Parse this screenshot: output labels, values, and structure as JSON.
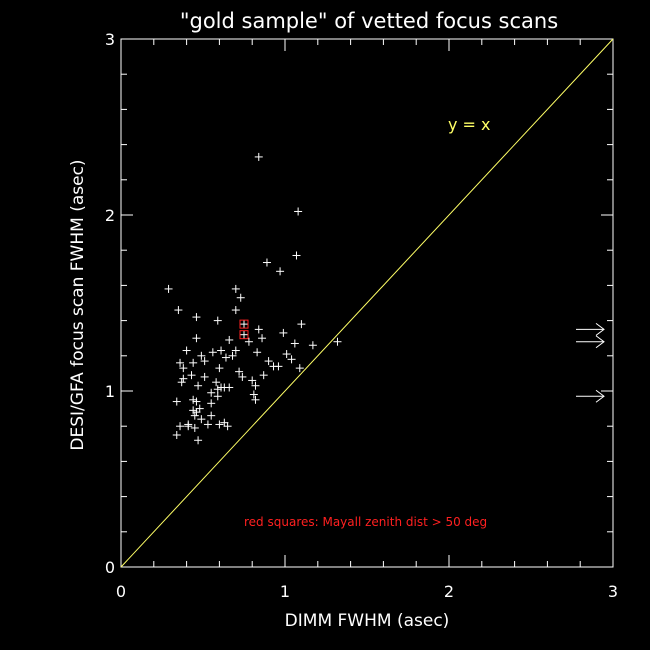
{
  "chart_data": {
    "type": "scatter",
    "title": "\"gold sample\" of vetted focus scans",
    "xlabel": "DIMM FWHM (asec)",
    "ylabel": "DESI/GFA focus scan FWHM (asec)",
    "xlim": [
      0,
      3
    ],
    "ylim": [
      0,
      3
    ],
    "x_ticks": [
      0,
      1,
      2,
      3
    ],
    "y_ticks": [
      0,
      1,
      2,
      3
    ],
    "grid": false,
    "reference_line": {
      "label": "y = x",
      "color": "#ffff66"
    },
    "annotation": {
      "text": "red squares: Mayall zenith dist > 50 deg",
      "color": "#ff2020"
    },
    "arrows_at_right_y": [
      1.35,
      1.28,
      0.97
    ],
    "series": [
      {
        "marker": "plus",
        "color": "#ffffff",
        "points": [
          [
            0.29,
            1.58
          ],
          [
            0.35,
            1.46
          ],
          [
            0.46,
            1.42
          ],
          [
            0.59,
            1.4
          ],
          [
            0.7,
            1.58
          ],
          [
            0.7,
            1.46
          ],
          [
            0.73,
            1.53
          ],
          [
            0.84,
            2.33
          ],
          [
            0.89,
            1.73
          ],
          [
            0.97,
            1.68
          ],
          [
            1.08,
            2.02
          ],
          [
            1.07,
            1.77
          ],
          [
            0.84,
            1.35
          ],
          [
            0.86,
            1.3
          ],
          [
            0.99,
            1.33
          ],
          [
            1.1,
            1.38
          ],
          [
            1.06,
            1.27
          ],
          [
            1.17,
            1.26
          ],
          [
            1.32,
            1.28
          ],
          [
            0.36,
            1.16
          ],
          [
            0.4,
            1.23
          ],
          [
            0.38,
            1.13
          ],
          [
            0.44,
            1.16
          ],
          [
            0.46,
            1.3
          ],
          [
            0.49,
            1.2
          ],
          [
            0.51,
            1.17
          ],
          [
            0.56,
            1.22
          ],
          [
            0.61,
            1.23
          ],
          [
            0.64,
            1.19
          ],
          [
            0.66,
            1.29
          ],
          [
            0.68,
            1.2
          ],
          [
            0.7,
            1.23
          ],
          [
            0.72,
            1.11
          ],
          [
            0.78,
            1.28
          ],
          [
            0.8,
            1.06
          ],
          [
            0.83,
            1.22
          ],
          [
            0.87,
            1.09
          ],
          [
            0.9,
            1.17
          ],
          [
            0.93,
            1.14
          ],
          [
            0.96,
            1.14
          ],
          [
            1.01,
            1.21
          ],
          [
            1.04,
            1.18
          ],
          [
            1.09,
            1.13
          ],
          [
            0.38,
            1.07
          ],
          [
            0.37,
            1.05
          ],
          [
            0.43,
            1.09
          ],
          [
            0.47,
            1.03
          ],
          [
            0.51,
            1.08
          ],
          [
            0.55,
            0.99
          ],
          [
            0.58,
            1.05
          ],
          [
            0.59,
            1.01
          ],
          [
            0.61,
            1.02
          ],
          [
            0.63,
            1.02
          ],
          [
            0.59,
            0.97
          ],
          [
            0.74,
            1.08
          ],
          [
            0.82,
            1.03
          ],
          [
            0.81,
            0.98
          ],
          [
            0.82,
            0.95
          ],
          [
            0.34,
            0.94
          ],
          [
            0.44,
            0.95
          ],
          [
            0.46,
            0.94
          ],
          [
            0.46,
            0.88
          ],
          [
            0.48,
            0.9
          ],
          [
            0.44,
            0.89
          ],
          [
            0.45,
            0.86
          ],
          [
            0.49,
            0.84
          ],
          [
            0.53,
            0.81
          ],
          [
            0.55,
            0.86
          ],
          [
            0.6,
            0.81
          ],
          [
            0.63,
            0.82
          ],
          [
            0.65,
            0.8
          ],
          [
            0.36,
            0.8
          ],
          [
            0.41,
            0.8
          ],
          [
            0.34,
            0.75
          ],
          [
            0.41,
            0.81
          ],
          [
            0.47,
            0.72
          ],
          [
            0.45,
            0.79
          ],
          [
            0.55,
            0.93
          ],
          [
            0.6,
            1.13
          ],
          [
            0.66,
            1.02
          ]
        ]
      },
      {
        "name": "red squares: Mayall zenith dist > 50 deg",
        "marker": "plus-in-square",
        "color": "#ff2020",
        "points": [
          [
            0.75,
            1.38
          ],
          [
            0.75,
            1.32
          ]
        ]
      }
    ]
  }
}
